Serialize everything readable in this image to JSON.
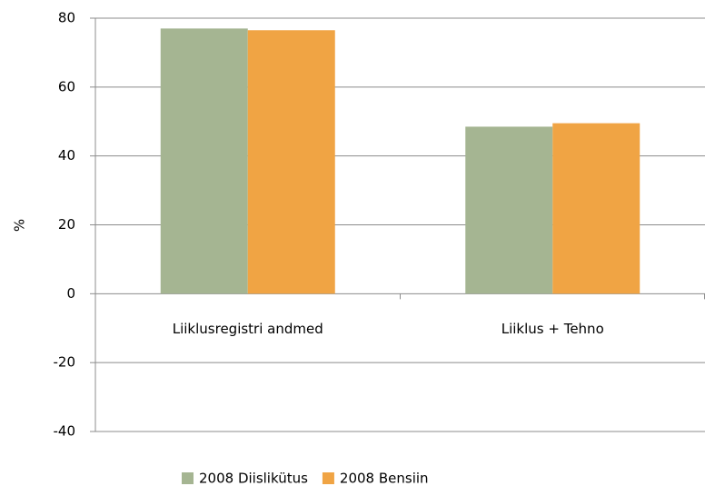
{
  "chart_data": {
    "type": "bar",
    "y_label": "%",
    "categories": [
      "Liiklusregistri andmed",
      "Liiklus + Tehno"
    ],
    "series": [
      {
        "name": "2008 Diislikütus",
        "color": "#a5b592",
        "values": [
          77,
          48.5
        ]
      },
      {
        "name": "2008 Bensiin",
        "color": "#f0a444",
        "values": [
          76.5,
          49.5
        ]
      }
    ],
    "ylim": [
      -40,
      80
    ],
    "yticks": [
      -40,
      -20,
      0,
      20,
      40,
      60,
      80
    ],
    "grid": true,
    "legend": "bottom"
  }
}
